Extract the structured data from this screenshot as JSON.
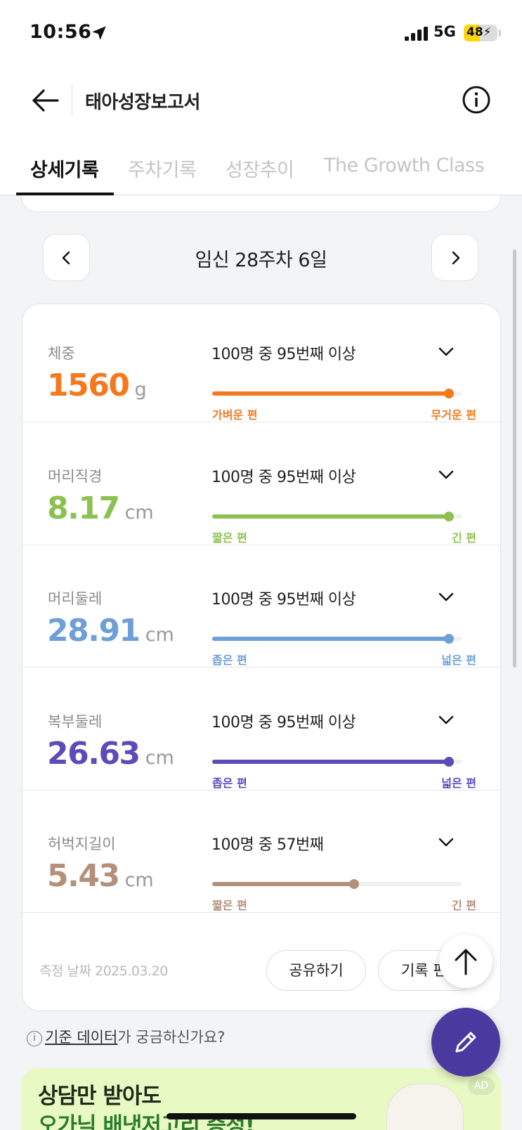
{
  "status": {
    "time": "10:56",
    "network": "5G",
    "battery": "48",
    "battery_level": 0.48
  },
  "header": {
    "title": "태아성장보고서"
  },
  "tabs": [
    {
      "label": "상세기록",
      "active": true
    },
    {
      "label": "주차기록",
      "active": false
    },
    {
      "label": "성장추이",
      "active": false
    },
    {
      "label": "The Growth Class",
      "active": false
    }
  ],
  "week_nav": {
    "label": "임신 28주차 6일"
  },
  "records": [
    {
      "label": "체중",
      "value": "1560",
      "unit": "g",
      "rank": "100명 중 95번째 이상",
      "percentile": 0.95,
      "min_label": "가벼운 편",
      "max_label": "무거운 편",
      "color": "#f5781f"
    },
    {
      "label": "머리직경",
      "value": "8.17",
      "unit": "cm",
      "rank": "100명 중 95번째 이상",
      "percentile": 0.95,
      "min_label": "짧은 편",
      "max_label": "긴 편",
      "color": "#8cc152"
    },
    {
      "label": "머리둘레",
      "value": "28.91",
      "unit": "cm",
      "rank": "100명 중 95번째 이상",
      "percentile": 0.95,
      "min_label": "좁은 편",
      "max_label": "넓은 편",
      "color": "#6f9fd8"
    },
    {
      "label": "복부둘레",
      "value": "26.63",
      "unit": "cm",
      "rank": "100명 중 95번째 이상",
      "percentile": 0.95,
      "min_label": "좁은 편",
      "max_label": "넓은 편",
      "color": "#5b4cb8"
    },
    {
      "label": "허벅지길이",
      "value": "5.43",
      "unit": "cm",
      "rank": "100명 중 57번째",
      "percentile": 0.57,
      "min_label": "짧은 편",
      "max_label": "긴 편",
      "color": "#b3907a"
    }
  ],
  "footer": {
    "date_text": "측정 날짜 2025.03.20",
    "share_label": "공유하기",
    "edit_label": "기록 편"
  },
  "info": {
    "link_text": "기준 데이터",
    "rest_text": "가 궁금하신가요?"
  },
  "ad": {
    "line1": "상담만 받아도",
    "line2": "오가닉 배냇저고리 증정!",
    "badge": "AD"
  }
}
